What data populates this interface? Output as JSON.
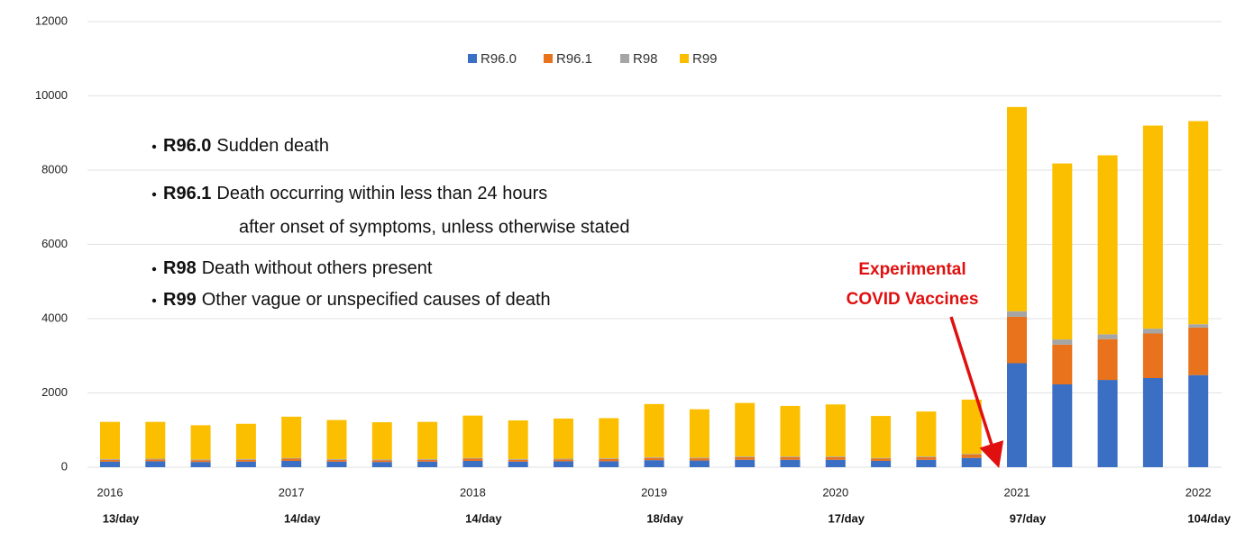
{
  "chart_data": {
    "type": "stacked_bar",
    "categories": [
      "2016",
      null,
      null,
      null,
      "2017",
      null,
      null,
      null,
      "2018",
      null,
      null,
      null,
      "2019",
      null,
      null,
      null,
      "2020",
      null,
      null,
      null,
      "2021",
      null,
      null,
      null,
      "2022"
    ],
    "rate_labels": [
      "13/day",
      null,
      null,
      null,
      "14/day",
      null,
      null,
      null,
      "14/day",
      null,
      null,
      null,
      "18/day",
      null,
      null,
      null,
      "17/day",
      null,
      null,
      null,
      "97/day",
      null,
      null,
      null,
      "104/day"
    ],
    "series": [
      {
        "name": "R96.0",
        "color": "#3a6fc4",
        "values": [
          150,
          160,
          140,
          150,
          170,
          150,
          140,
          150,
          170,
          150,
          160,
          160,
          190,
          180,
          200,
          200,
          200,
          170,
          200,
          250,
          2800,
          2230,
          2350,
          2400,
          2480
        ]
      },
      {
        "name": "R96.1",
        "color": "#e8731c",
        "values": [
          50,
          50,
          50,
          50,
          60,
          50,
          50,
          50,
          60,
          50,
          50,
          60,
          60,
          60,
          70,
          70,
          70,
          60,
          70,
          90,
          1250,
          1070,
          1100,
          1200,
          1280
        ]
      },
      {
        "name": "R98",
        "color": "#a5a5a5",
        "values": [
          20,
          20,
          20,
          20,
          20,
          20,
          20,
          20,
          20,
          20,
          20,
          20,
          20,
          20,
          20,
          20,
          20,
          20,
          20,
          20,
          150,
          140,
          130,
          130,
          90
        ]
      },
      {
        "name": "R99",
        "color": "#fbbf00",
        "values": [
          1000,
          990,
          920,
          950,
          1110,
          1050,
          1000,
          1000,
          1140,
          1040,
          1080,
          1080,
          1430,
          1300,
          1440,
          1360,
          1400,
          1130,
          1210,
          1460,
          5500,
          4740,
          4820,
          5470,
          5470
        ]
      }
    ],
    "ylim": [
      0,
      12000
    ],
    "yticks": [
      0,
      2000,
      4000,
      6000,
      8000,
      10000,
      12000
    ],
    "grid": true,
    "legend": "top",
    "definitions": [
      {
        "code": "R96.0",
        "lines": [
          "Sudden death"
        ]
      },
      {
        "code": "R96.1",
        "lines": [
          "Death occurring within less than 24 hours",
          "after onset of symptoms, unless otherwise stated"
        ]
      },
      {
        "code": "R98",
        "lines": [
          "Death without others present"
        ]
      },
      {
        "code": "R99",
        "lines": [
          "Other vague or unspecified causes of death"
        ]
      }
    ],
    "annotation": {
      "lines": [
        "Experimental",
        "COVID Vaccines"
      ],
      "color": "#e01010"
    }
  }
}
